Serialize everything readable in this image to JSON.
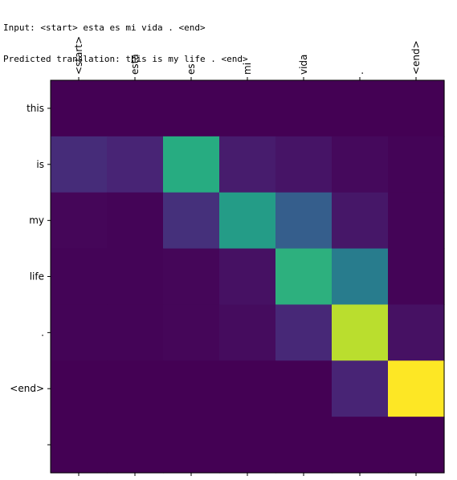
{
  "console": {
    "input_line": "Input: <start> esta es mi vida . <end>",
    "prediction_line": "Predicted translation: this is my life . <end>"
  },
  "chart_data": {
    "type": "heatmap",
    "colormap": "viridis",
    "x_tick_position": "top",
    "x_tick_rotation": 90,
    "grid": false,
    "x_labels": [
      "<start>",
      "esta",
      "es",
      "mi",
      "vida",
      ".",
      "<end>"
    ],
    "y_labels": [
      "this",
      "is",
      "my",
      "life",
      ".",
      "<end>",
      ""
    ],
    "values": [
      [
        0.0,
        0.0,
        0.0,
        0.0,
        0.0,
        0.0,
        0.0
      ],
      [
        0.15,
        0.13,
        0.62,
        0.1,
        0.07,
        0.03,
        0.01
      ],
      [
        0.02,
        0.01,
        0.16,
        0.55,
        0.3,
        0.08,
        0.01
      ],
      [
        0.01,
        0.01,
        0.02,
        0.06,
        0.64,
        0.42,
        0.01
      ],
      [
        0.01,
        0.01,
        0.02,
        0.04,
        0.14,
        0.9,
        0.06
      ],
      [
        0.0,
        0.0,
        0.0,
        0.0,
        0.0,
        0.13,
        1.0
      ],
      [
        0.0,
        0.0,
        0.0,
        0.0,
        0.0,
        0.0,
        0.0
      ]
    ]
  }
}
